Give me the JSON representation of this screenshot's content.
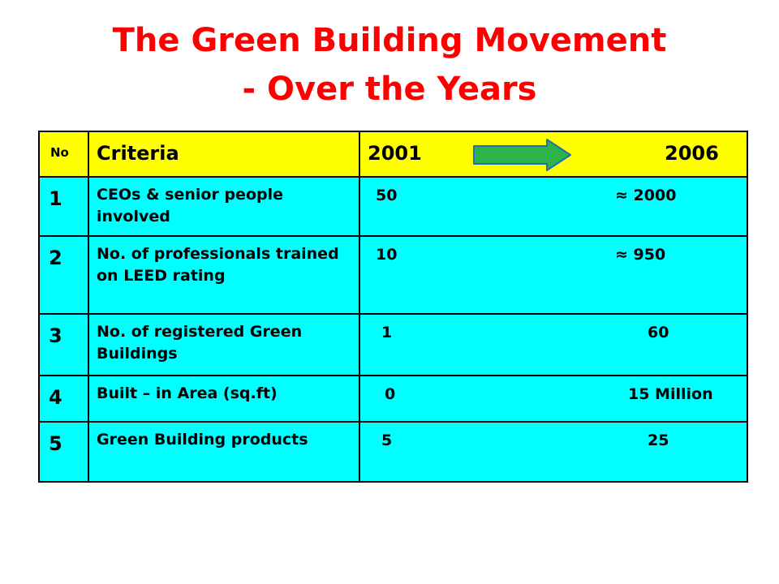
{
  "title": {
    "line1": "The Green Building Movement",
    "line2": "- Over the Years"
  },
  "colors": {
    "title": "#ff0000",
    "header_bg": "#ffff00",
    "row_bg": "#00ffff",
    "arrow_fill": "#2db34a",
    "arrow_stroke": "#1f6fb2"
  },
  "table": {
    "headers": {
      "no": "No",
      "criteria": "Criteria",
      "year_from": "2001",
      "year_to": "2006",
      "arrow_icon": "right-arrow-icon"
    },
    "rows": [
      {
        "no": "1",
        "criteria": "CEOs & senior people involved",
        "v2001": "50",
        "v2006": "≈ 2000"
      },
      {
        "no": "2",
        "criteria": "No. of professionals trained on LEED rating",
        "v2001": "10",
        "v2006": "≈ 950"
      },
      {
        "no": "3",
        "criteria": "No. of registered Green Buildings",
        "v2001": "1",
        "v2006": "60"
      },
      {
        "no": "4",
        "criteria": "Built – in Area (sq.ft)",
        "v2001": "0",
        "v2006": "15 Million"
      },
      {
        "no": "5",
        "criteria": "Green Building products",
        "v2001": "5",
        "v2006": "25"
      }
    ]
  }
}
